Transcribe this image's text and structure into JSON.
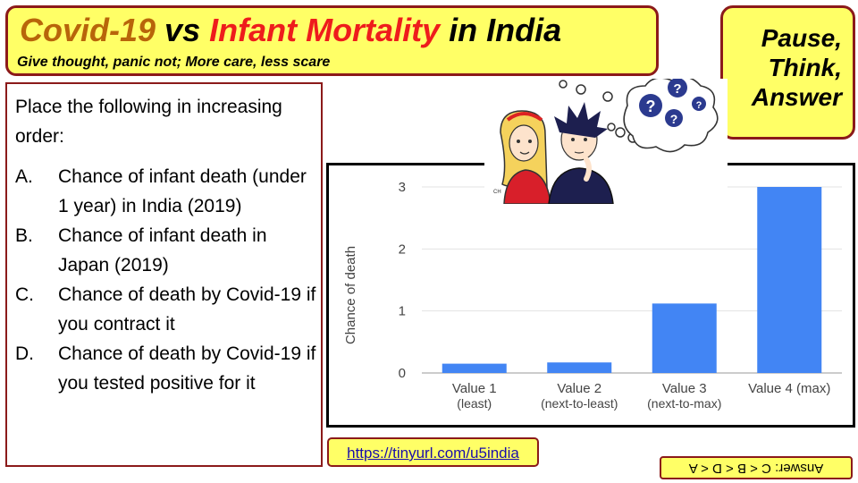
{
  "title": {
    "part1": "Covid-19",
    "part2": " vs ",
    "part3": "Infant Mortality",
    "part4": " in India",
    "subtitle": "Give thought, panic not; More care, less scare"
  },
  "pause": [
    "Pause,",
    "Think,",
    "Answer"
  ],
  "question": {
    "intro": "Place the following in increasing order:",
    "items": [
      {
        "letter": "A.",
        "text": "Chance of infant death (under 1 year) in India (2019)"
      },
      {
        "letter": "B.",
        "text": "Chance of infant death in Japan (2019)"
      },
      {
        "letter": "C.",
        "text": "Chance of death by Covid-19 if you contract it"
      },
      {
        "letter": "D.",
        "text": "Chance of death by Covid-19 if you tested positive for it"
      }
    ]
  },
  "link": "https://tinyurl.com/u5india",
  "answer": "Answer: C < B < D < A",
  "cartoon": {
    "signature": "CH"
  },
  "colors": {
    "accent_yellow": "#ffff66",
    "border": "#8b1a1a",
    "bar": "#4285f4",
    "title_orange": "#b8650a",
    "title_red": "#ee1c1c"
  },
  "chart_data": {
    "type": "bar",
    "categories": [
      [
        "Value 1",
        "(least)"
      ],
      [
        "Value 2",
        "(next-to-least)"
      ],
      [
        "Value 3",
        "(next-to-max)"
      ],
      [
        "Value 4 (max)"
      ]
    ],
    "values": [
      0.15,
      0.17,
      1.12,
      3.0
    ],
    "ylabel": "Chance of death",
    "xlabel": "",
    "ylim": [
      0,
      3
    ],
    "yticks": [
      0,
      1,
      2,
      3
    ],
    "grid": true,
    "bar_color": "#4285f4"
  }
}
